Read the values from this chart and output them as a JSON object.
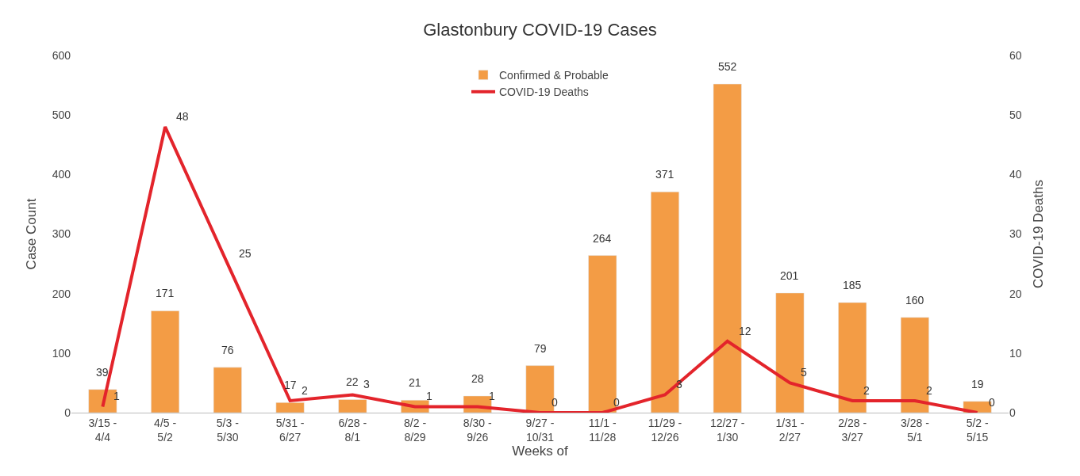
{
  "chart_data": {
    "type": "bar",
    "title": "Glastonbury COVID-19 Cases",
    "xlabel": "Weeks of",
    "ylabel": "Case Count",
    "y2label": "COVID-19 Deaths",
    "categories": [
      "3/15 -\n4/4",
      "4/5 -\n5/2",
      "5/3 -\n5/30",
      "5/31 -\n6/27",
      "6/28 -\n8/1",
      "8/2 -\n8/29",
      "8/30 -\n9/26",
      "9/27 -\n10/31",
      "11/1 -\n11/28",
      "11/29 -\n12/26",
      "12/27 -\n1/30",
      "1/31 -\n2/27",
      "2/28 -\n3/27",
      "3/28 -\n5/1",
      "5/2 -\n5/15"
    ],
    "series": [
      {
        "name": "Confirmed & Probable",
        "color": "#f39c45",
        "values": [
          39,
          171,
          76,
          17,
          22,
          21,
          28,
          79,
          264,
          371,
          552,
          201,
          185,
          160,
          19
        ]
      },
      {
        "name": "COVID-19 Deaths",
        "type": "line",
        "axis": "y2",
        "color": "#e3242b",
        "values": [
          1,
          48,
          25,
          2,
          3,
          1,
          1,
          0,
          0,
          3,
          12,
          5,
          2,
          2,
          0
        ]
      }
    ],
    "ylim": [
      0,
      600
    ],
    "yticks": [
      0,
      100,
      200,
      300,
      400,
      500,
      600
    ],
    "y2lim": [
      0,
      60
    ],
    "y2ticks": [
      0,
      10,
      20,
      30,
      40,
      50,
      60
    ],
    "data_labels": true,
    "legend": "top",
    "marker": "none",
    "line_style": "solid"
  }
}
